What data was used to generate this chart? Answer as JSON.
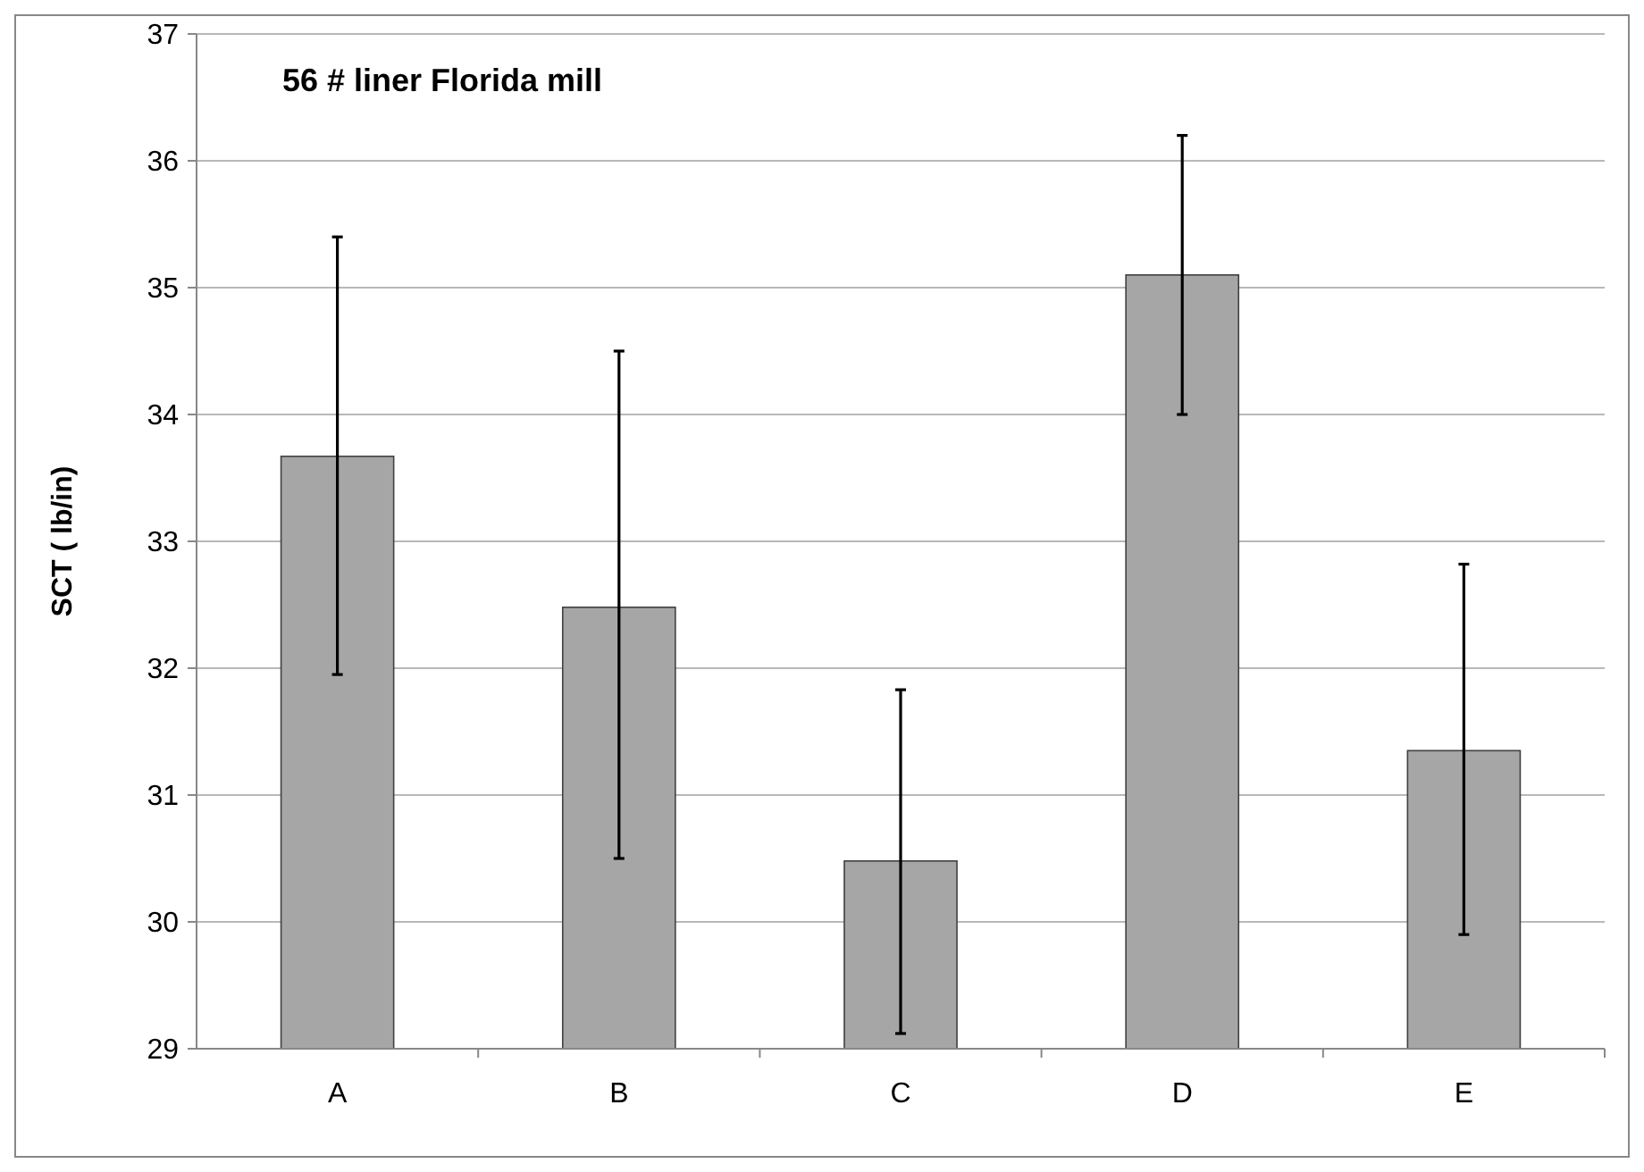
{
  "chart_data": {
    "type": "bar",
    "title": "56 # liner Florida mill",
    "ylabel": "SCT ( lb/in)",
    "categories": [
      "A",
      "B",
      "C",
      "D",
      "E"
    ],
    "values": [
      33.67,
      32.48,
      30.48,
      35.1,
      31.35
    ],
    "errors": [
      [
        31.95,
        35.4
      ],
      [
        30.5,
        34.5
      ],
      [
        29.12,
        31.83
      ],
      [
        34.0,
        36.2
      ],
      [
        29.9,
        32.82
      ]
    ],
    "color": "#a6a6a6",
    "ylim": [
      29,
      37
    ],
    "yticks": [
      29,
      30,
      31,
      32,
      33,
      34,
      35,
      36,
      37
    ],
    "grid": "y"
  }
}
